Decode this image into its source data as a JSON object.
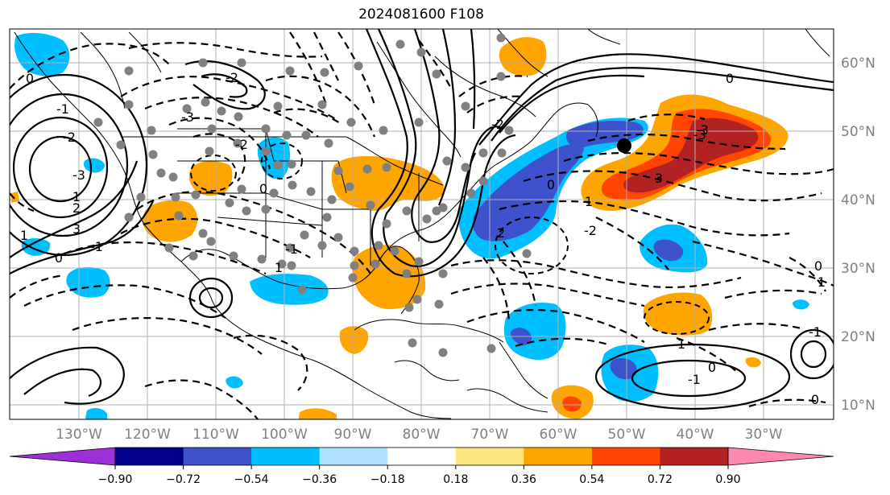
{
  "title": "2024081600 F108",
  "map": {
    "latitude_labels": [
      "60°N",
      "50°N",
      "40°N",
      "30°N",
      "20°N",
      "10°N"
    ],
    "longitude_labels": [
      "130°W",
      "120°W",
      "110°W",
      "100°W",
      "90°W",
      "80°W",
      "70°W",
      "60°W",
      "50°W",
      "40°W",
      "30°W"
    ]
  },
  "colorbar": {
    "ticks": [
      "−0.90",
      "−0.72",
      "−0.54",
      "−0.36",
      "−0.18",
      "0.18",
      "0.36",
      "0.54",
      "0.72",
      "0.90"
    ],
    "colors": {
      "below": "#9b30d9",
      "bins": [
        "#00008b",
        "#3d52cc",
        "#00bfff",
        "#aee1ff",
        "#ffffff",
        "#ffe680",
        "#ffa500",
        "#ff4500",
        "#b22222"
      ],
      "above": "#ff88b0"
    }
  },
  "contour_labels": [
    "0",
    "-1",
    "-2",
    "-3",
    "1",
    "2",
    "3",
    "-1",
    "0",
    "1",
    "-2",
    "-3",
    "-2",
    "0",
    "1",
    "-1",
    "2",
    "-2",
    "1",
    "0",
    "-3",
    "3",
    "-3",
    "-2",
    "0",
    "1",
    "0",
    "-1",
    "-1",
    "1",
    "0",
    "0"
  ],
  "colors": {
    "positive_dark": "#b22222",
    "positive_mid": "#ff4500",
    "positive_light": "#ffa500",
    "negative_light": "#00bfff",
    "negative_mid": "#3d52cc",
    "station_dot": "#808080"
  }
}
